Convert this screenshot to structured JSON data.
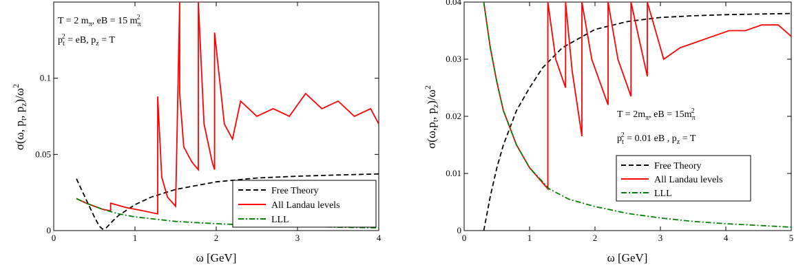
{
  "chart_data": [
    {
      "type": "line",
      "xlabel": "ω [GeV]",
      "ylabel": "σ(ω, p_t, p_z)/ω²",
      "xlim": [
        0,
        4
      ],
      "ylim": [
        0,
        0.15
      ],
      "x_ticks": [
        "0",
        "1",
        "2",
        "3",
        "4"
      ],
      "y_ticks": [
        "0",
        "0.05",
        "0.1"
      ],
      "y_tick_values": [
        0,
        0.05,
        0.1
      ],
      "x_tick_values": [
        0,
        1,
        2,
        3,
        4
      ],
      "annotation_lines": [
        "T = 2 m_π, eB = 15 m_π²",
        "p_t² = eB, p_z = T"
      ],
      "legend_position": "bottom-right",
      "legend": [
        {
          "name": "Free Theory",
          "color": "#000000",
          "style": "dashed"
        },
        {
          "name": "All Landau levels",
          "color": "#ff0000",
          "style": "solid"
        },
        {
          "name": "LLL",
          "color": "#008000",
          "style": "dashdot"
        }
      ],
      "series": [
        {
          "name": "Free Theory",
          "x": [
            0.28,
            0.35,
            0.42,
            0.5,
            0.56,
            0.6,
            0.65,
            0.72,
            0.8,
            1.0,
            1.2,
            1.5,
            2.0,
            2.5,
            3.0,
            3.5,
            4.0
          ],
          "y": [
            0.034,
            0.026,
            0.018,
            0.009,
            0.003,
            0.001,
            0.002,
            0.006,
            0.01,
            0.017,
            0.022,
            0.027,
            0.032,
            0.0345,
            0.0357,
            0.0365,
            0.0372
          ]
        },
        {
          "name": "All Landau levels",
          "x": [
            0.28,
            0.4,
            0.5,
            0.6,
            0.7,
            0.7,
            0.9,
            1.1,
            1.28,
            1.28,
            1.33,
            1.4,
            1.5,
            1.55,
            1.55,
            1.6,
            1.7,
            1.78,
            1.78,
            1.85,
            1.95,
            1.98,
            1.98,
            2.1,
            2.2,
            2.3,
            2.5,
            2.7,
            2.9,
            3.1,
            3.3,
            3.5,
            3.7,
            3.9,
            4.0
          ],
          "y": [
            0.021,
            0.018,
            0.016,
            0.014,
            0.013,
            0.018,
            0.015,
            0.013,
            0.011,
            0.088,
            0.035,
            0.022,
            0.016,
            0.15,
            0.09,
            0.055,
            0.045,
            0.04,
            0.15,
            0.07,
            0.045,
            0.04,
            0.13,
            0.07,
            0.06,
            0.085,
            0.075,
            0.08,
            0.075,
            0.09,
            0.08,
            0.085,
            0.075,
            0.08,
            0.07
          ]
        },
        {
          "name": "LLL",
          "x": [
            0.28,
            0.4,
            0.5,
            0.6,
            0.8,
            1.0,
            1.5,
            2.0,
            2.5,
            3.0,
            3.5,
            4.0
          ],
          "y": [
            0.021,
            0.018,
            0.016,
            0.014,
            0.011,
            0.009,
            0.006,
            0.0045,
            0.0035,
            0.0028,
            0.0022,
            0.0018
          ]
        }
      ]
    },
    {
      "type": "line",
      "xlabel": "ω [GeV]",
      "ylabel": "σ(ω,p_t, p_z)/ω²",
      "xlim": [
        0,
        5
      ],
      "ylim": [
        0,
        0.04
      ],
      "x_ticks": [
        "0",
        "1",
        "2",
        "3",
        "4",
        "5"
      ],
      "y_ticks": [
        "0",
        "0.01",
        "0.02",
        "0.03",
        "0.04"
      ],
      "y_tick_values": [
        0,
        0.01,
        0.02,
        0.03,
        0.04
      ],
      "x_tick_values": [
        0,
        1,
        2,
        3,
        4,
        5
      ],
      "annotation_lines": [
        "T = 2m_π, eB = 15m_π²",
        "p_t² = 0.01 eB , p_z = T"
      ],
      "legend_position": "bottom-right",
      "legend": [
        {
          "name": "Free Theory",
          "color": "#000000",
          "style": "dashed"
        },
        {
          "name": "All Landau levels",
          "color": "#ff0000",
          "style": "solid"
        },
        {
          "name": "LLL",
          "color": "#008000",
          "style": "dashdot"
        }
      ],
      "series": [
        {
          "name": "Free Theory",
          "x": [
            0.3,
            0.4,
            0.5,
            0.6,
            0.8,
            1.0,
            1.2,
            1.5,
            2.0,
            2.5,
            3.0,
            3.5,
            4.0,
            4.5,
            5.0
          ],
          "y": [
            0.0,
            0.006,
            0.011,
            0.015,
            0.021,
            0.025,
            0.0285,
            0.032,
            0.0352,
            0.0366,
            0.0373,
            0.0376,
            0.0378,
            0.0379,
            0.038
          ]
        },
        {
          "name": "All Landau levels",
          "x": [
            0.3,
            0.4,
            0.5,
            0.6,
            0.8,
            1.0,
            1.28,
            1.28,
            1.4,
            1.55,
            1.55,
            1.65,
            1.8,
            1.8,
            1.95,
            2.2,
            2.2,
            2.35,
            2.55,
            2.55,
            2.8,
            2.8,
            3.05,
            3.3,
            3.55,
            3.8,
            4.05,
            4.3,
            4.55,
            4.8,
            5.0
          ],
          "y": [
            0.04,
            0.032,
            0.026,
            0.021,
            0.015,
            0.011,
            0.0073,
            0.04,
            0.03,
            0.025,
            0.04,
            0.028,
            0.0165,
            0.04,
            0.03,
            0.022,
            0.04,
            0.03,
            0.0235,
            0.04,
            0.027,
            0.04,
            0.03,
            0.032,
            0.033,
            0.034,
            0.035,
            0.035,
            0.036,
            0.036,
            0.034
          ]
        },
        {
          "name": "LLL",
          "x": [
            0.3,
            0.4,
            0.5,
            0.6,
            0.8,
            1.0,
            1.3,
            1.6,
            2.0,
            2.5,
            3.0,
            3.5,
            4.0,
            4.5,
            5.0
          ],
          "y": [
            0.04,
            0.032,
            0.026,
            0.021,
            0.015,
            0.011,
            0.0073,
            0.0055,
            0.0042,
            0.003,
            0.0022,
            0.0016,
            0.0012,
            0.0009,
            0.0006
          ]
        }
      ]
    }
  ]
}
